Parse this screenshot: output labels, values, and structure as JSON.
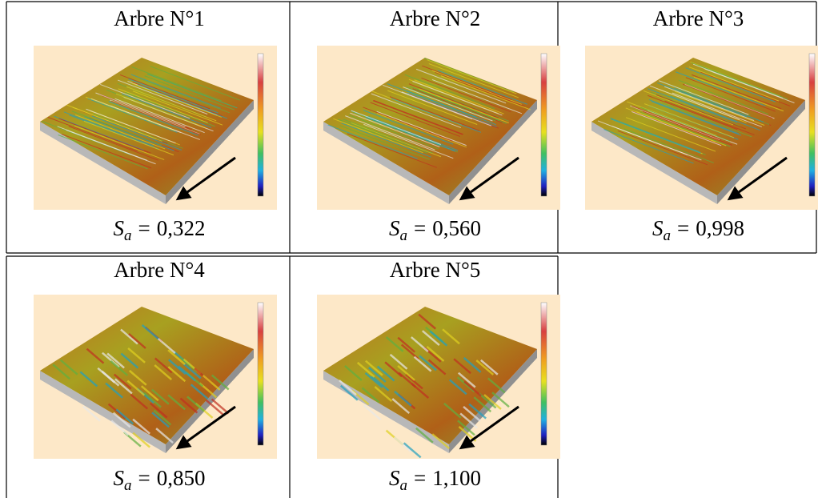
{
  "table": {
    "rows": [
      [
        {
          "title": "Arbre N°1",
          "symbol": "S",
          "subscript": "a",
          "operator": "=",
          "value": "0,322"
        },
        {
          "title": "Arbre N°2",
          "symbol": "S",
          "subscript": "a",
          "operator": "=",
          "value": "0,560"
        },
        {
          "title": "Arbre N°3",
          "symbol": "S",
          "subscript": "a",
          "operator": "=",
          "value": "0,998"
        }
      ],
      [
        {
          "title": "Arbre N°4",
          "symbol": "S",
          "subscript": "a",
          "operator": "=",
          "value": "0,850"
        },
        {
          "title": "Arbre N°5",
          "symbol": "S",
          "subscript": "a",
          "operator": "=",
          "value": "1,100"
        }
      ]
    ]
  }
}
